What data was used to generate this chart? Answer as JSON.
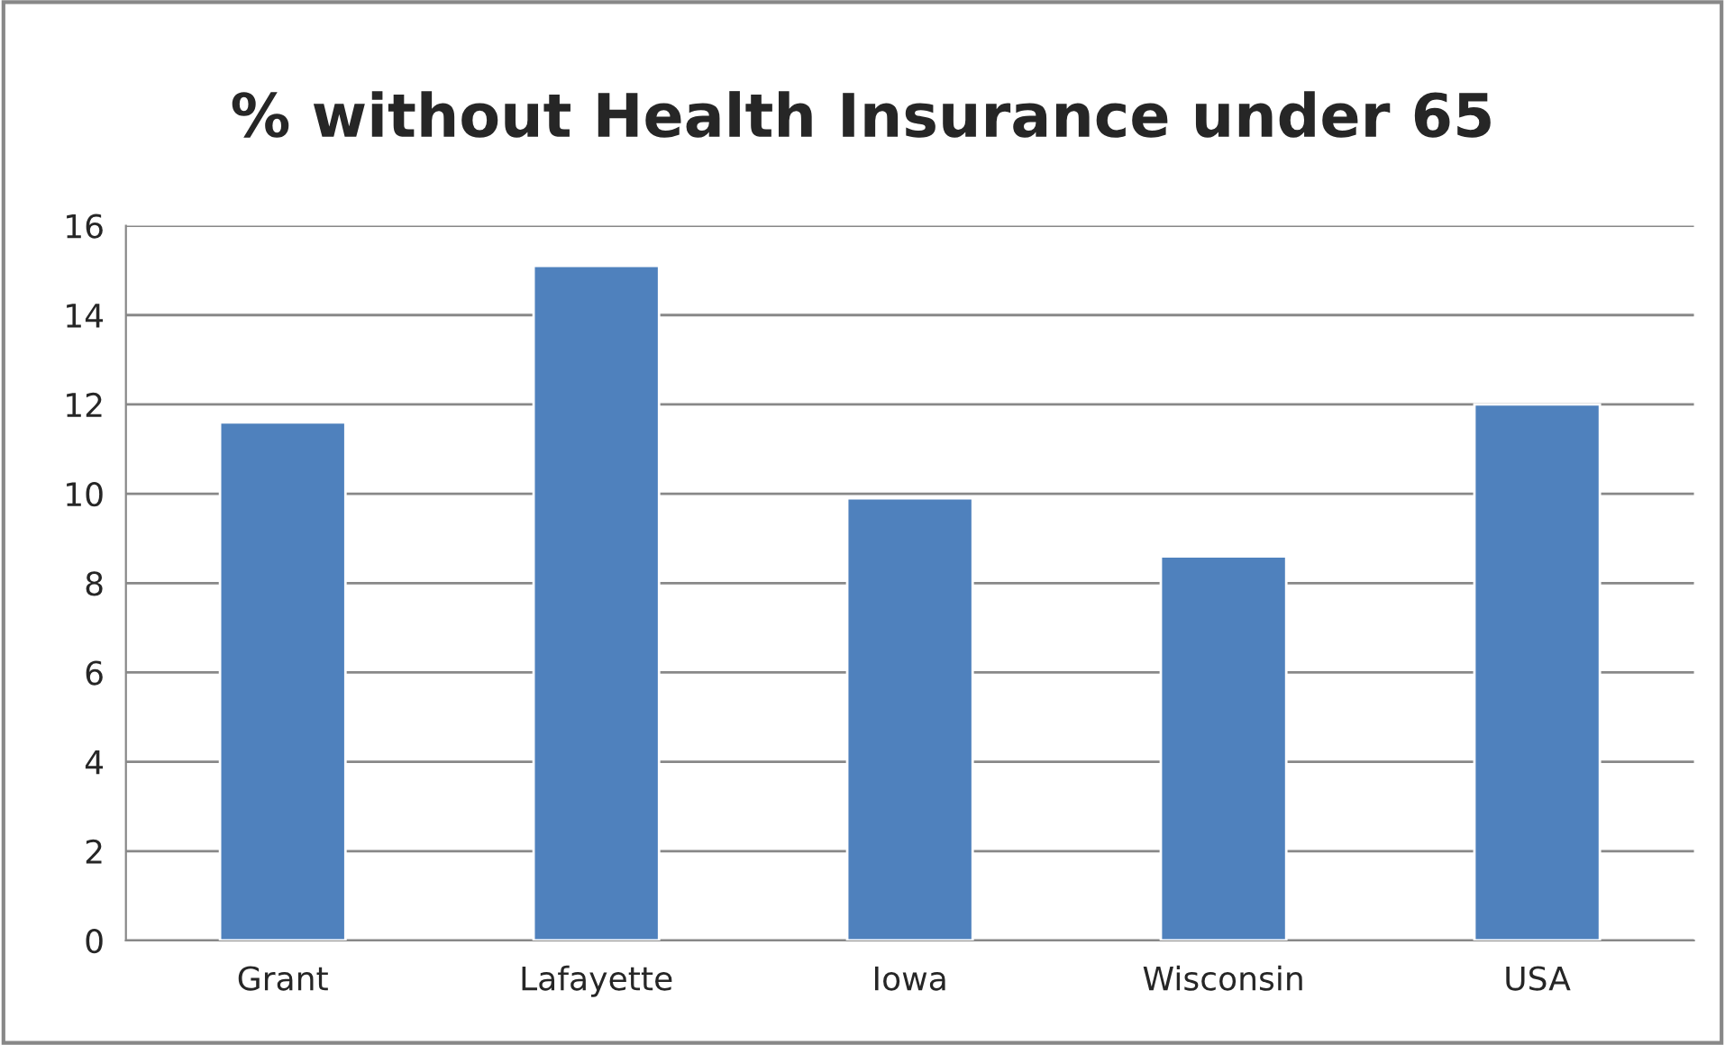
{
  "chart_data": {
    "type": "bar",
    "title": "% without Health Insurance under 65",
    "categories": [
      "Grant",
      "Lafayette",
      "Iowa",
      "Wisconsin",
      "USA"
    ],
    "values": [
      11.6,
      15.1,
      9.9,
      8.6,
      12.0
    ],
    "color": "#4f81bd",
    "ylim": [
      0,
      16
    ],
    "yticks": [
      0,
      2,
      4,
      6,
      8,
      10,
      12,
      14,
      16
    ],
    "grid": "y",
    "legend": false
  }
}
